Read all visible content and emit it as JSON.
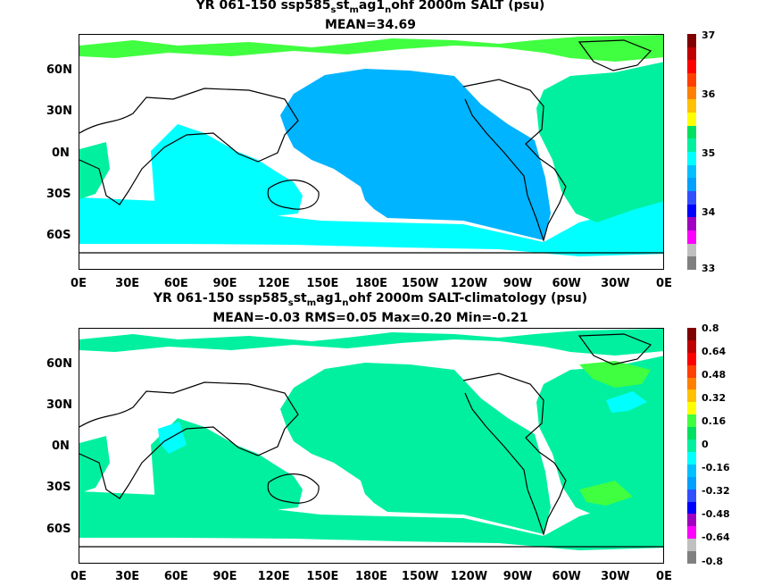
{
  "panels": [
    {
      "title_parts": [
        "YR 061-150 ssp585",
        "s",
        "st",
        "m",
        "ag1",
        "n",
        "ohf 2000m SALT (psu)"
      ],
      "subtitle": "MEAN=34.69",
      "colorbar": {
        "labels": [
          "37",
          "36",
          "35",
          "34",
          "33"
        ],
        "colors": [
          "#808080",
          "#c0c0c0",
          "#ff00ff",
          "#a000c0",
          "#0000ff",
          "#3050ff",
          "#00a0ff",
          "#00c0ff",
          "#00ffff",
          "#00f0a0",
          "#00e060",
          "#ffff00",
          "#ffc000",
          "#ff8000",
          "#ff4000",
          "#ff0000",
          "#c00000",
          "#800000"
        ]
      },
      "palette": {
        "land": "#ffffff",
        "pacific": "#00b4ff",
        "indian": "#00ffff",
        "southern": "#00ffff",
        "atlantic": "#00f0a0",
        "arctic": "#40ff40"
      }
    },
    {
      "title_parts": [
        "YR 061-150 ssp585",
        "s",
        "st",
        "m",
        "ag1",
        "n",
        "ohf 2000m SALT-climatology (psu)"
      ],
      "subtitle": "MEAN=-0.03   RMS=0.05   Max=0.20   Min=-0.21",
      "colorbar": {
        "labels": [
          "0.8",
          "0.64",
          "0.48",
          "0.32",
          "0.16",
          "0",
          "-0.16",
          "-0.32",
          "-0.48",
          "-0.64",
          "-0.8"
        ],
        "colors": [
          "#808080",
          "#c0c0c0",
          "#ff00ff",
          "#a000c0",
          "#0000ff",
          "#3050ff",
          "#00a0ff",
          "#00c0ff",
          "#00ffff",
          "#00f0a0",
          "#00e060",
          "#40ff40",
          "#ffff00",
          "#ffc000",
          "#ff8000",
          "#ff4000",
          "#ff0000",
          "#c00000",
          "#800000"
        ]
      },
      "palette": {
        "land": "#ffffff",
        "pacific": "#00f0a0",
        "indian": "#00f0a0",
        "southern": "#00f0a0",
        "atlantic": "#00f0a0",
        "arctic": "#00f0a0"
      }
    }
  ],
  "lat_labels": [
    "60N",
    "30N",
    "0N",
    "30S",
    "60S"
  ],
  "lon_labels": [
    "0E",
    "30E",
    "60E",
    "90E",
    "120E",
    "150E",
    "180E",
    "150W",
    "120W",
    "90W",
    "60W",
    "30W",
    "0E"
  ]
}
